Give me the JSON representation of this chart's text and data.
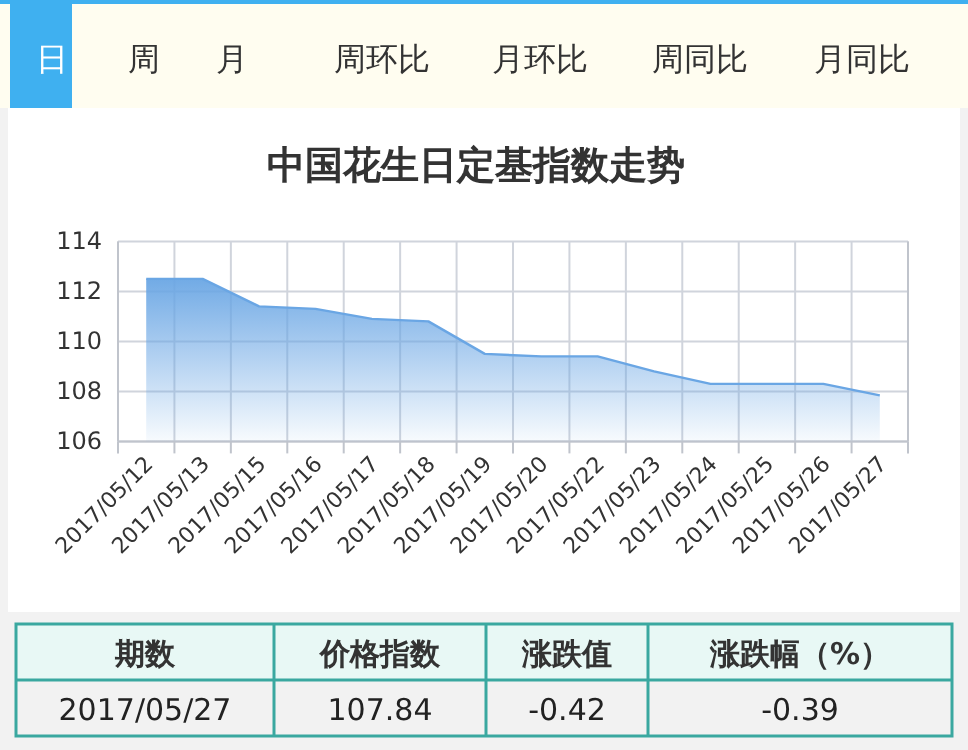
{
  "chart_data": {
    "type": "area",
    "title": "中国花生日定基指数走势",
    "categories": [
      "2017/05/12",
      "2017/05/13",
      "2017/05/15",
      "2017/05/16",
      "2017/05/17",
      "2017/05/18",
      "2017/05/19",
      "2017/05/20",
      "2017/05/22",
      "2017/05/23",
      "2017/05/24",
      "2017/05/25",
      "2017/05/26",
      "2017/05/27"
    ],
    "series": [
      {
        "color": "#6aa6e4",
        "values": [
          112.5,
          112.5,
          111.4,
          111.3,
          110.9,
          110.8,
          109.5,
          109.4,
          109.4,
          108.8,
          108.3,
          108.3,
          108.3,
          107.84
        ]
      }
    ],
    "ylim": [
      106,
      114
    ],
    "yticks": [
      106,
      108,
      110,
      112,
      114
    ],
    "grid": true,
    "marker": "none",
    "annotations": [
      "日",
      "周",
      "月",
      "周环比",
      "月环比",
      "周同比",
      "月同比",
      "期数",
      "价格指数",
      "涨跌值",
      "涨跌幅（%）",
      "2017/05/27",
      "107.84",
      "-0.42",
      "-0.39"
    ]
  }
}
